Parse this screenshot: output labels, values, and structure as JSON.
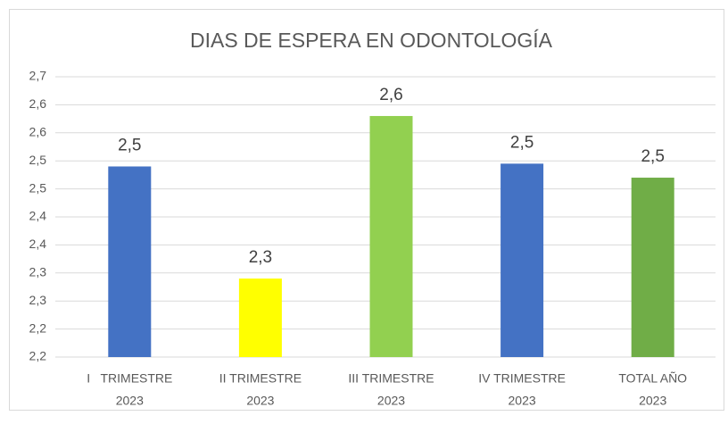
{
  "chart_data": {
    "type": "bar",
    "title": "DIAS DE ESPERA EN ODONTOLOGÍA",
    "categories": [
      [
        "I   TRIMESTRE",
        "2023"
      ],
      [
        "II TRIMESTRE",
        "2023"
      ],
      [
        "III TRIMESTRE",
        "2023"
      ],
      [
        "IV TRIMESTRE",
        "2023"
      ],
      [
        "TOTAL AÑO",
        "2023"
      ]
    ],
    "values": [
      2.54,
      2.34,
      2.63,
      2.545,
      2.52
    ],
    "value_labels": [
      "2,5",
      "2,3",
      "2,6",
      "2,5",
      "2,5"
    ],
    "colors": [
      "#4472c4",
      "#ffff00",
      "#92d050",
      "#4472c4",
      "#70ad47"
    ],
    "ylim": [
      2.2,
      2.7
    ],
    "yticks": [
      {
        "value": 2.2,
        "label": "2,2"
      },
      {
        "value": 2.25,
        "label": "2,2"
      },
      {
        "value": 2.3,
        "label": "2,3"
      },
      {
        "value": 2.35,
        "label": "2,3"
      },
      {
        "value": 2.4,
        "label": "2,4"
      },
      {
        "value": 2.45,
        "label": "2,4"
      },
      {
        "value": 2.5,
        "label": "2,5"
      },
      {
        "value": 2.55,
        "label": "2,5"
      },
      {
        "value": 2.6,
        "label": "2,6"
      },
      {
        "value": 2.65,
        "label": "2,6"
      },
      {
        "value": 2.7,
        "label": "2,7"
      }
    ],
    "grid": true
  }
}
